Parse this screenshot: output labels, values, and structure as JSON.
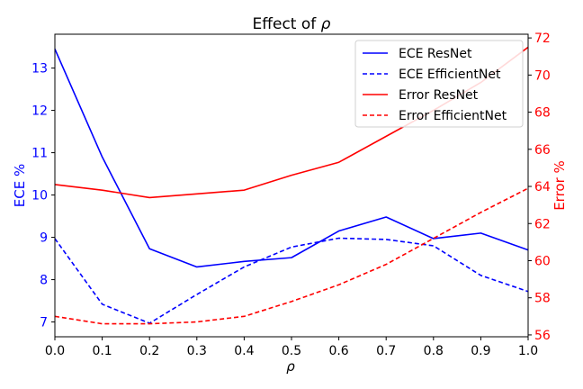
{
  "chart_data": {
    "type": "line",
    "title_prefix": "Effect of ",
    "title_symbol": "ρ",
    "xlabel": "ρ",
    "ylabel_left": "ECE %",
    "ylabel_right": "Error %",
    "xlim": [
      0.0,
      1.0
    ],
    "ylim_left": [
      6.65,
      13.8
    ],
    "ylim_right": [
      55.9,
      72.2
    ],
    "x": [
      0.0,
      0.1,
      0.2,
      0.3,
      0.4,
      0.5,
      0.6,
      0.7,
      0.8,
      0.9,
      1.0
    ],
    "x_ticks": [
      "0.0",
      "0.1",
      "0.2",
      "0.3",
      "0.4",
      "0.5",
      "0.6",
      "0.7",
      "0.8",
      "0.9",
      "1.0"
    ],
    "y_left_ticks": [
      7,
      8,
      9,
      10,
      11,
      12,
      13
    ],
    "y_right_ticks": [
      56,
      58,
      60,
      62,
      64,
      66,
      68,
      70,
      72
    ],
    "left_axis_color": "#0000ff",
    "right_axis_color": "#ff0000",
    "legend_position": "top-right",
    "series": [
      {
        "name": "ECE ResNet",
        "axis": "left",
        "color": "#0000ff",
        "dash": false,
        "values": [
          13.45,
          10.9,
          8.73,
          8.3,
          8.43,
          8.52,
          9.15,
          9.48,
          8.97,
          9.1,
          8.7
        ]
      },
      {
        "name": "ECE EfficientNet",
        "axis": "left",
        "color": "#0000ff",
        "dash": true,
        "values": [
          8.97,
          7.42,
          6.97,
          7.65,
          8.3,
          8.77,
          8.98,
          8.95,
          8.8,
          8.1,
          7.72
        ]
      },
      {
        "name": "Error ResNet",
        "axis": "right",
        "color": "#ff0000",
        "dash": false,
        "values": [
          64.1,
          63.8,
          63.4,
          63.6,
          63.8,
          64.6,
          65.3,
          66.7,
          68.1,
          69.6,
          71.5
        ]
      },
      {
        "name": "Error EfficientNet",
        "axis": "right",
        "color": "#ff0000",
        "dash": true,
        "values": [
          57.0,
          56.6,
          56.6,
          56.7,
          57.0,
          57.8,
          58.7,
          59.8,
          61.2,
          62.6,
          63.9
        ]
      }
    ]
  }
}
